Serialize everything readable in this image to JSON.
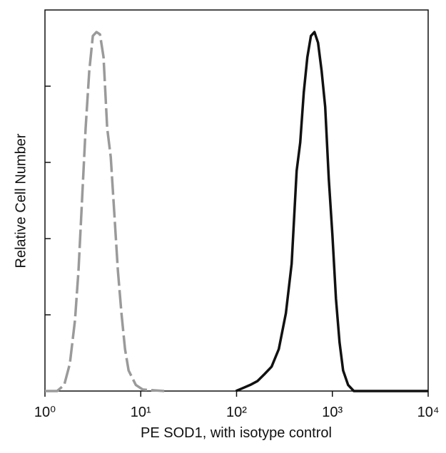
{
  "chart_data": {
    "type": "line",
    "x_label": "PE SOD1, with isotype control",
    "y_label": "Relative Cell Number",
    "xscale": "log",
    "xlim": [
      1,
      10000
    ],
    "xticks": [
      {
        "value": 1,
        "label": "10⁰"
      },
      {
        "value": 10,
        "label": "10¹"
      },
      {
        "value": 100,
        "label": "10²"
      },
      {
        "value": 1000,
        "label": "10³"
      },
      {
        "value": 10000,
        "label": "10⁴"
      }
    ],
    "ylim": [
      0,
      5
    ],
    "yticks": [
      0,
      1,
      2,
      3,
      4
    ],
    "series": [
      {
        "color": "#9a9a9a",
        "dash": true,
        "x": [
          1,
          1.34,
          1.59,
          1.82,
          2.06,
          2.24,
          2.44,
          2.66,
          2.9,
          3.16,
          3.45,
          3.75,
          4.09,
          4.46,
          4.86,
          5.3,
          5.77,
          6.29,
          6.85,
          7.46,
          8.87,
          10.5,
          17.6
        ],
        "values": [
          0,
          0,
          0.08,
          0.36,
          0.93,
          1.58,
          2.51,
          3.45,
          4.2,
          4.66,
          4.71,
          4.68,
          4.38,
          3.45,
          3.07,
          2.33,
          1.58,
          1.02,
          0.55,
          0.27,
          0.08,
          0.02,
          0
        ]
      },
      {
        "color": "#111111",
        "dash": false,
        "x": [
          98.4,
          117,
          139,
          165,
          195,
          232,
          276,
          327,
          376,
          424,
          462,
          503,
          548,
          597,
          651,
          709,
          773,
          842,
          917,
          1000,
          1090,
          1188,
          1294,
          1459,
          1675,
          10000
        ],
        "values": [
          0,
          0.04,
          0.08,
          0.13,
          0.22,
          0.32,
          0.55,
          1.02,
          1.67,
          2.89,
          3.26,
          3.92,
          4.38,
          4.66,
          4.71,
          4.57,
          4.2,
          3.73,
          2.79,
          2.05,
          1.21,
          0.64,
          0.27,
          0.08,
          0,
          0
        ]
      }
    ]
  }
}
